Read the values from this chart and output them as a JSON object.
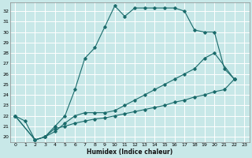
{
  "xlabel": "Humidex (Indice chaleur)",
  "bg_color": "#c8e8e8",
  "grid_color": "#ffffff",
  "line_color": "#1a6b6b",
  "ylim": [
    19.5,
    32.8
  ],
  "xlim": [
    -0.5,
    23.5
  ],
  "yticks": [
    20,
    21,
    22,
    23,
    24,
    25,
    26,
    27,
    28,
    29,
    30,
    31,
    32
  ],
  "xticks": [
    0,
    1,
    2,
    3,
    4,
    5,
    6,
    7,
    8,
    9,
    10,
    11,
    12,
    13,
    14,
    15,
    16,
    17,
    18,
    19,
    20,
    21,
    22,
    23
  ],
  "line1_x": [
    0,
    1,
    2,
    3,
    4,
    5,
    6,
    7,
    8,
    9,
    10,
    11,
    12,
    13,
    14,
    15,
    16,
    17,
    18,
    19,
    20,
    21,
    22
  ],
  "line1_y": [
    22.0,
    21.5,
    19.7,
    20.0,
    21.0,
    22.0,
    24.5,
    27.5,
    28.5,
    30.5,
    32.5,
    31.5,
    32.3,
    32.3,
    32.3,
    32.3,
    32.3,
    32.0,
    30.2,
    30.0,
    30.0,
    26.5,
    25.5
  ],
  "line2_x": [
    0,
    2,
    3,
    4,
    5,
    6,
    7,
    8,
    9,
    10,
    11,
    12,
    13,
    14,
    15,
    16,
    17,
    18,
    19,
    20,
    22
  ],
  "line2_y": [
    22.0,
    19.7,
    20.0,
    20.5,
    21.3,
    22.0,
    22.3,
    22.3,
    22.3,
    22.5,
    23.0,
    23.5,
    24.0,
    24.5,
    25.0,
    25.5,
    26.0,
    26.5,
    27.5,
    28.0,
    25.5
  ],
  "line3_x": [
    0,
    2,
    3,
    4,
    5,
    6,
    7,
    8,
    9,
    10,
    11,
    12,
    13,
    14,
    15,
    16,
    17,
    18,
    19,
    20,
    21,
    22
  ],
  "line3_y": [
    22.0,
    19.7,
    20.0,
    20.8,
    21.0,
    21.3,
    21.5,
    21.7,
    21.8,
    22.0,
    22.2,
    22.4,
    22.6,
    22.8,
    23.0,
    23.3,
    23.5,
    23.8,
    24.0,
    24.3,
    24.5,
    25.5
  ]
}
